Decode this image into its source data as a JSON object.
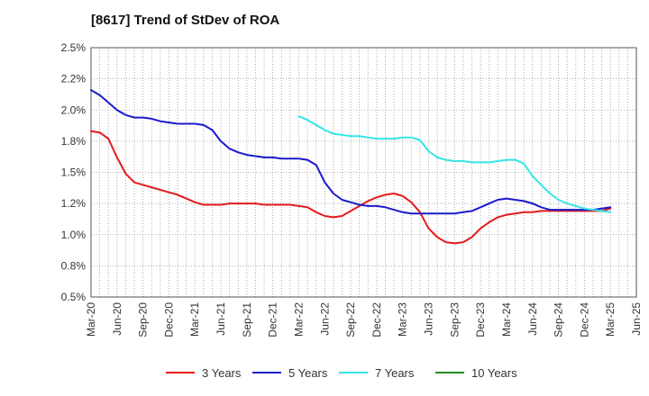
{
  "chart_data": {
    "type": "line",
    "title": "[8617]  Trend of StDev of ROA",
    "xlabel": "",
    "ylabel": "",
    "ylim": [
      0.5,
      2.5
    ],
    "grid": true,
    "legend_position": "bottom",
    "x_ticks": [
      "Mar-20",
      "Jun-20",
      "Sep-20",
      "Dec-20",
      "Mar-21",
      "Jun-21",
      "Sep-21",
      "Dec-21",
      "Mar-22",
      "Jun-22",
      "Sep-22",
      "Dec-22",
      "Mar-23",
      "Jun-23",
      "Sep-23",
      "Dec-23",
      "Mar-24",
      "Jun-24",
      "Sep-24",
      "Dec-24",
      "Mar-25",
      "Jun-25"
    ],
    "y_ticks": [
      "0.5%",
      "0.8%",
      "1.0%",
      "1.2%",
      "1.5%",
      "1.8%",
      "2.0%",
      "2.2%",
      "2.5%"
    ],
    "series": [
      {
        "name": "3 Years",
        "color": "#e41a1c",
        "x": [
          "Mar-20",
          "Apr-20",
          "May-20",
          "Jun-20",
          "Jul-20",
          "Aug-20",
          "Sep-20",
          "Oct-20",
          "Nov-20",
          "Dec-20",
          "Jan-21",
          "Feb-21",
          "Mar-21",
          "Apr-21",
          "May-21",
          "Jun-21",
          "Jul-21",
          "Aug-21",
          "Sep-21",
          "Oct-21",
          "Nov-21",
          "Dec-21",
          "Jan-22",
          "Feb-22",
          "Mar-22",
          "Apr-22",
          "May-22",
          "Jun-22",
          "Jul-22",
          "Aug-22",
          "Sep-22",
          "Oct-22",
          "Nov-22",
          "Dec-22",
          "Jan-23",
          "Feb-23",
          "Mar-23",
          "Apr-23",
          "May-23",
          "Jun-23",
          "Jul-23",
          "Aug-23",
          "Sep-23",
          "Oct-23",
          "Nov-23",
          "Dec-23",
          "Jan-24",
          "Feb-24",
          "Mar-24",
          "Apr-24",
          "May-24",
          "Jun-24",
          "Jul-24",
          "Aug-24",
          "Sep-24",
          "Oct-24",
          "Nov-24",
          "Dec-24",
          "Jan-25",
          "Feb-25",
          "Mar-25"
        ],
        "values": [
          1.83,
          1.82,
          1.77,
          1.62,
          1.49,
          1.42,
          1.4,
          1.38,
          1.36,
          1.34,
          1.32,
          1.29,
          1.26,
          1.24,
          1.24,
          1.24,
          1.25,
          1.25,
          1.25,
          1.25,
          1.24,
          1.24,
          1.24,
          1.24,
          1.23,
          1.22,
          1.18,
          1.15,
          1.14,
          1.15,
          1.19,
          1.23,
          1.27,
          1.3,
          1.32,
          1.33,
          1.31,
          1.26,
          1.18,
          1.05,
          0.98,
          0.94,
          0.93,
          0.94,
          0.98,
          1.05,
          1.1,
          1.14,
          1.16,
          1.17,
          1.18,
          1.18,
          1.19,
          1.19,
          1.19,
          1.19,
          1.19,
          1.19,
          1.19,
          1.19,
          1.21
        ]
      },
      {
        "name": "5 Years",
        "color": "#1a1acd",
        "x": [
          "Mar-20",
          "Apr-20",
          "May-20",
          "Jun-20",
          "Jul-20",
          "Aug-20",
          "Sep-20",
          "Oct-20",
          "Nov-20",
          "Dec-20",
          "Jan-21",
          "Feb-21",
          "Mar-21",
          "Apr-21",
          "May-21",
          "Jun-21",
          "Jul-21",
          "Aug-21",
          "Sep-21",
          "Oct-21",
          "Nov-21",
          "Dec-21",
          "Jan-22",
          "Feb-22",
          "Mar-22",
          "Apr-22",
          "May-22",
          "Jun-22",
          "Jul-22",
          "Aug-22",
          "Sep-22",
          "Oct-22",
          "Nov-22",
          "Dec-22",
          "Jan-23",
          "Feb-23",
          "Mar-23",
          "Apr-23",
          "May-23",
          "Jun-23",
          "Jul-23",
          "Aug-23",
          "Sep-23",
          "Oct-23",
          "Nov-23",
          "Dec-23",
          "Jan-24",
          "Feb-24",
          "Mar-24",
          "Apr-24",
          "May-24",
          "Jun-24",
          "Jul-24",
          "Aug-24",
          "Sep-24",
          "Oct-24",
          "Nov-24",
          "Dec-24",
          "Jan-25",
          "Feb-25",
          "Mar-25"
        ],
        "values": [
          2.16,
          2.12,
          2.06,
          2.0,
          1.96,
          1.94,
          1.94,
          1.93,
          1.91,
          1.9,
          1.89,
          1.89,
          1.89,
          1.88,
          1.84,
          1.75,
          1.69,
          1.66,
          1.64,
          1.63,
          1.62,
          1.62,
          1.61,
          1.61,
          1.61,
          1.6,
          1.56,
          1.42,
          1.33,
          1.28,
          1.26,
          1.24,
          1.23,
          1.23,
          1.22,
          1.2,
          1.18,
          1.17,
          1.17,
          1.17,
          1.17,
          1.17,
          1.17,
          1.18,
          1.19,
          1.22,
          1.25,
          1.28,
          1.29,
          1.28,
          1.27,
          1.25,
          1.22,
          1.2,
          1.2,
          1.2,
          1.2,
          1.2,
          1.2,
          1.21,
          1.22
        ]
      },
      {
        "name": "7 Years",
        "color": "#33e6e6",
        "x": [
          "Mar-22",
          "Apr-22",
          "May-22",
          "Jun-22",
          "Jul-22",
          "Aug-22",
          "Sep-22",
          "Oct-22",
          "Nov-22",
          "Dec-22",
          "Jan-23",
          "Feb-23",
          "Mar-23",
          "Apr-23",
          "May-23",
          "Jun-23",
          "Jul-23",
          "Aug-23",
          "Sep-23",
          "Oct-23",
          "Nov-23",
          "Dec-23",
          "Jan-24",
          "Feb-24",
          "Mar-24",
          "Apr-24",
          "May-24",
          "Jun-24",
          "Jul-24",
          "Aug-24",
          "Sep-24",
          "Oct-24",
          "Nov-24",
          "Dec-24",
          "Jan-25",
          "Feb-25",
          "Mar-25"
        ],
        "values": [
          1.95,
          1.92,
          1.88,
          1.84,
          1.81,
          1.8,
          1.79,
          1.79,
          1.78,
          1.77,
          1.77,
          1.77,
          1.78,
          1.78,
          1.76,
          1.67,
          1.62,
          1.6,
          1.59,
          1.59,
          1.58,
          1.58,
          1.58,
          1.59,
          1.6,
          1.6,
          1.57,
          1.47,
          1.4,
          1.33,
          1.28,
          1.25,
          1.23,
          1.21,
          1.2,
          1.19,
          1.18
        ]
      },
      {
        "name": "10 Years",
        "color": "#228b22",
        "x": [],
        "values": []
      }
    ]
  }
}
